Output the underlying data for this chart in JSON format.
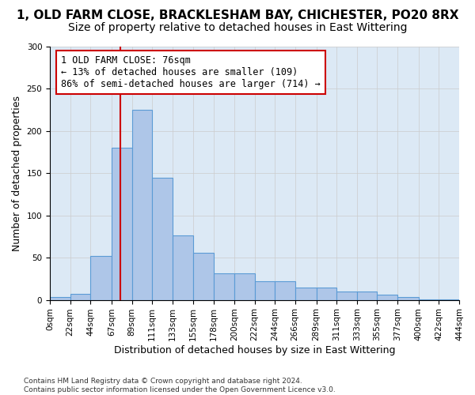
{
  "title": "1, OLD FARM CLOSE, BRACKLESHAM BAY, CHICHESTER, PO20 8RX",
  "subtitle": "Size of property relative to detached houses in East Wittering",
  "xlabel": "Distribution of detached houses by size in East Wittering",
  "ylabel": "Number of detached properties",
  "footnote": "Contains HM Land Registry data © Crown copyright and database right 2024.\nContains public sector information licensed under the Open Government Licence v3.0.",
  "bar_edges": [
    0,
    22,
    44,
    67,
    89,
    111,
    133,
    155,
    178,
    200,
    222,
    244,
    266,
    289,
    311,
    333,
    355,
    377,
    400,
    422,
    444
  ],
  "bar_heights": [
    3,
    7,
    52,
    180,
    225,
    145,
    76,
    56,
    31,
    31,
    22,
    22,
    15,
    15,
    10,
    10,
    6,
    3,
    1,
    1
  ],
  "bar_color": "#aec6e8",
  "bar_edgecolor": "#5b9bd5",
  "bar_linewidth": 0.8,
  "property_size": 76,
  "annotation_text": "1 OLD FARM CLOSE: 76sqm\n← 13% of detached houses are smaller (109)\n86% of semi-detached houses are larger (714) →",
  "annotation_box_color": "#ffffff",
  "annotation_box_edgecolor": "#cc0000",
  "vline_color": "#cc0000",
  "vline_linewidth": 1.5,
  "ylim": [
    0,
    300
  ],
  "yticks": [
    0,
    50,
    100,
    150,
    200,
    250,
    300
  ],
  "tick_labels": [
    "0sqm",
    "22sqm",
    "44sqm",
    "67sqm",
    "89sqm",
    "111sqm",
    "133sqm",
    "155sqm",
    "178sqm",
    "200sqm",
    "222sqm",
    "244sqm",
    "266sqm",
    "289sqm",
    "311sqm",
    "333sqm",
    "355sqm",
    "377sqm",
    "400sqm",
    "422sqm",
    "444sqm"
  ],
  "grid_color": "#cccccc",
  "background_color": "#dce9f5",
  "fig_bg_color": "#ffffff",
  "title_fontsize": 11,
  "subtitle_fontsize": 10,
  "axis_label_fontsize": 9,
  "tick_fontsize": 7.5,
  "annotation_fontsize": 8.5
}
